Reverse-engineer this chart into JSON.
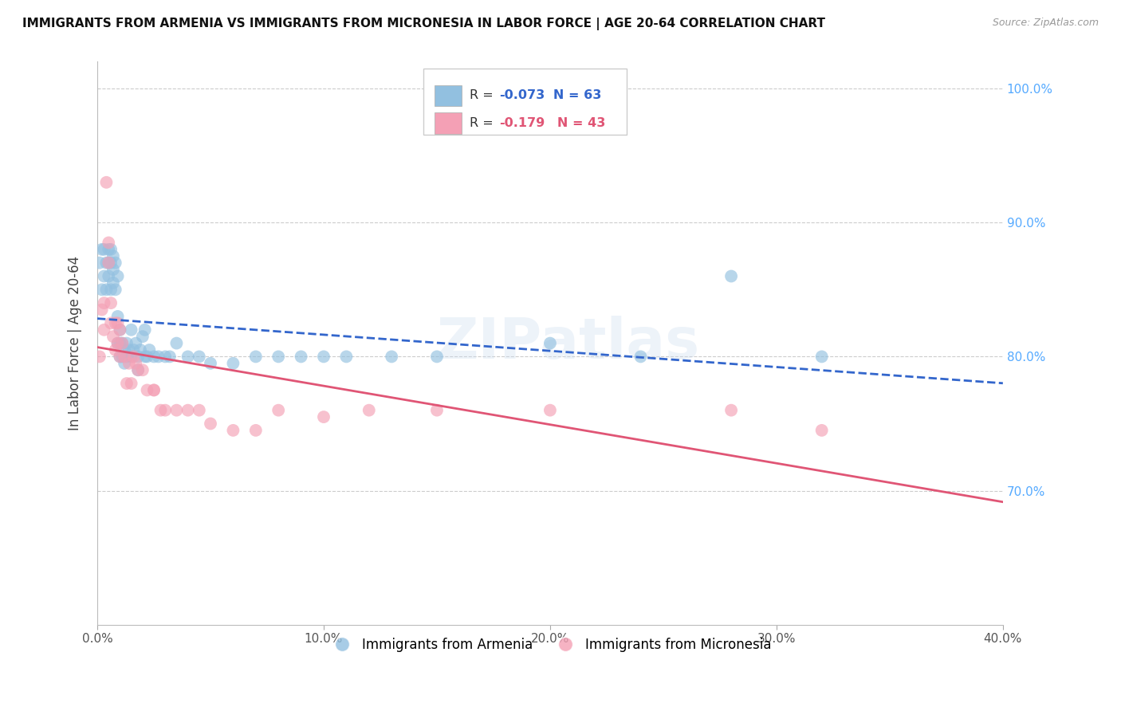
{
  "title": "IMMIGRANTS FROM ARMENIA VS IMMIGRANTS FROM MICRONESIA IN LABOR FORCE | AGE 20-64 CORRELATION CHART",
  "source": "Source: ZipAtlas.com",
  "ylabel": "In Labor Force | Age 20-64",
  "xlim": [
    0.0,
    0.4
  ],
  "ylim": [
    0.6,
    1.02
  ],
  "yticks": [
    0.7,
    0.8,
    0.9,
    1.0
  ],
  "ytick_labels": [
    "70.0%",
    "80.0%",
    "90.0%",
    "100.0%"
  ],
  "xticks": [
    0.0,
    0.1,
    0.2,
    0.3,
    0.4
  ],
  "xtick_labels": [
    "0.0%",
    "10.0%",
    "20.0%",
    "30.0%",
    "40.0%"
  ],
  "legend_R_armenia": "-0.073",
  "legend_N_armenia": "63",
  "legend_R_micronesia": "-0.179",
  "legend_N_micronesia": "43",
  "color_armenia": "#92C0E0",
  "color_micronesia": "#F4A0B5",
  "color_line_armenia": "#3366CC",
  "color_line_micronesia": "#E05575",
  "grid_color": "#CCCCCC",
  "watermark": "ZIPatlas",
  "armenia_x": [
    0.001,
    0.002,
    0.002,
    0.003,
    0.003,
    0.004,
    0.004,
    0.005,
    0.005,
    0.005,
    0.006,
    0.006,
    0.006,
    0.007,
    0.007,
    0.007,
    0.008,
    0.008,
    0.009,
    0.009,
    0.009,
    0.01,
    0.01,
    0.01,
    0.011,
    0.011,
    0.012,
    0.012,
    0.013,
    0.013,
    0.014,
    0.015,
    0.015,
    0.016,
    0.017,
    0.018,
    0.018,
    0.019,
    0.02,
    0.021,
    0.021,
    0.022,
    0.023,
    0.025,
    0.027,
    0.03,
    0.032,
    0.035,
    0.04,
    0.045,
    0.05,
    0.06,
    0.07,
    0.08,
    0.09,
    0.1,
    0.11,
    0.13,
    0.15,
    0.2,
    0.24,
    0.28,
    0.32
  ],
  "armenia_y": [
    0.87,
    0.85,
    0.88,
    0.86,
    0.88,
    0.87,
    0.85,
    0.87,
    0.88,
    0.86,
    0.88,
    0.87,
    0.85,
    0.875,
    0.855,
    0.865,
    0.87,
    0.85,
    0.86,
    0.83,
    0.81,
    0.82,
    0.81,
    0.8,
    0.81,
    0.8,
    0.805,
    0.795,
    0.8,
    0.81,
    0.805,
    0.8,
    0.82,
    0.805,
    0.81,
    0.8,
    0.79,
    0.805,
    0.815,
    0.8,
    0.82,
    0.8,
    0.805,
    0.8,
    0.8,
    0.8,
    0.8,
    0.81,
    0.8,
    0.8,
    0.795,
    0.795,
    0.8,
    0.8,
    0.8,
    0.8,
    0.8,
    0.8,
    0.8,
    0.81,
    0.8,
    0.86,
    0.8
  ],
  "micronesia_x": [
    0.001,
    0.002,
    0.003,
    0.003,
    0.004,
    0.005,
    0.005,
    0.006,
    0.006,
    0.007,
    0.008,
    0.008,
    0.009,
    0.009,
    0.01,
    0.01,
    0.011,
    0.012,
    0.013,
    0.014,
    0.015,
    0.016,
    0.017,
    0.018,
    0.02,
    0.022,
    0.025,
    0.025,
    0.028,
    0.03,
    0.035,
    0.04,
    0.045,
    0.05,
    0.06,
    0.07,
    0.08,
    0.1,
    0.12,
    0.15,
    0.2,
    0.28,
    0.32
  ],
  "micronesia_y": [
    0.8,
    0.835,
    0.82,
    0.84,
    0.93,
    0.885,
    0.87,
    0.84,
    0.825,
    0.815,
    0.825,
    0.805,
    0.825,
    0.81,
    0.82,
    0.8,
    0.81,
    0.8,
    0.78,
    0.795,
    0.78,
    0.8,
    0.795,
    0.79,
    0.79,
    0.775,
    0.775,
    0.775,
    0.76,
    0.76,
    0.76,
    0.76,
    0.76,
    0.75,
    0.745,
    0.745,
    0.76,
    0.755,
    0.76,
    0.76,
    0.76,
    0.76,
    0.745
  ]
}
